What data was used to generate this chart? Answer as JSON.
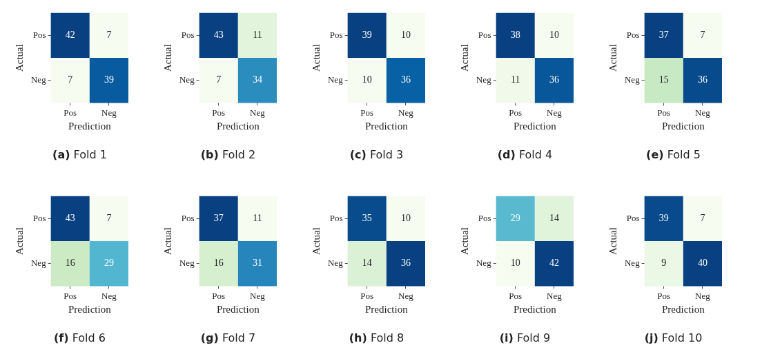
{
  "chart_data": [
    {
      "type": "heatmap",
      "title": "(a) Fold 1",
      "xlabel": "Prediction",
      "ylabel": "Actual",
      "categories": [
        "Pos",
        "Neg"
      ],
      "y_categories": [
        "Pos",
        "Neg"
      ],
      "cells": [
        [
          42,
          7
        ],
        [
          7,
          39
        ]
      ],
      "data_labels": true
    },
    {
      "type": "heatmap",
      "title": "(b) Fold 2",
      "xlabel": "Prediction",
      "ylabel": "Actual",
      "categories": [
        "Pos",
        "Neg"
      ],
      "y_categories": [
        "Pos",
        "Neg"
      ],
      "cells": [
        [
          43,
          11
        ],
        [
          7,
          34
        ]
      ],
      "data_labels": true
    },
    {
      "type": "heatmap",
      "title": "(c) Fold 3",
      "xlabel": "Prediction",
      "ylabel": "Actual",
      "categories": [
        "Pos",
        "Neg"
      ],
      "y_categories": [
        "Pos",
        "Neg"
      ],
      "cells": [
        [
          39,
          10
        ],
        [
          10,
          36
        ]
      ],
      "data_labels": true
    },
    {
      "type": "heatmap",
      "title": "(d) Fold 4",
      "xlabel": "Prediction",
      "ylabel": "Actual",
      "categories": [
        "Pos",
        "Neg"
      ],
      "y_categories": [
        "Pos",
        "Neg"
      ],
      "cells": [
        [
          38,
          10
        ],
        [
          11,
          36
        ]
      ],
      "data_labels": true
    },
    {
      "type": "heatmap",
      "title": "(e) Fold 5",
      "xlabel": "Prediction",
      "ylabel": "Actual",
      "categories": [
        "Pos",
        "Neg"
      ],
      "y_categories": [
        "Pos",
        "Neg"
      ],
      "cells": [
        [
          37,
          7
        ],
        [
          15,
          36
        ]
      ],
      "data_labels": true
    },
    {
      "type": "heatmap",
      "title": "(f) Fold 6",
      "xlabel": "Prediction",
      "ylabel": "Actual",
      "categories": [
        "Pos",
        "Neg"
      ],
      "y_categories": [
        "Pos",
        "Neg"
      ],
      "cells": [
        [
          43,
          7
        ],
        [
          16,
          29
        ]
      ],
      "data_labels": true
    },
    {
      "type": "heatmap",
      "title": "(g) Fold 7",
      "xlabel": "Prediction",
      "ylabel": "Actual",
      "categories": [
        "Pos",
        "Neg"
      ],
      "y_categories": [
        "Pos",
        "Neg"
      ],
      "cells": [
        [
          37,
          11
        ],
        [
          16,
          31
        ]
      ],
      "data_labels": true
    },
    {
      "type": "heatmap",
      "title": "(h) Fold 8",
      "xlabel": "Prediction",
      "ylabel": "Actual",
      "categories": [
        "Pos",
        "Neg"
      ],
      "y_categories": [
        "Pos",
        "Neg"
      ],
      "cells": [
        [
          35,
          10
        ],
        [
          14,
          36
        ]
      ],
      "data_labels": true
    },
    {
      "type": "heatmap",
      "title": "(i) Fold 9",
      "xlabel": "Prediction",
      "ylabel": "Actual",
      "categories": [
        "Pos",
        "Neg"
      ],
      "y_categories": [
        "Pos",
        "Neg"
      ],
      "cells": [
        [
          29,
          14
        ],
        [
          10,
          42
        ]
      ],
      "data_labels": true
    },
    {
      "type": "heatmap",
      "title": "(j) Fold 10",
      "xlabel": "Prediction",
      "ylabel": "Actual",
      "categories": [
        "Pos",
        "Neg"
      ],
      "y_categories": [
        "Pos",
        "Neg"
      ],
      "cells": [
        [
          39,
          7
        ],
        [
          9,
          40
        ]
      ],
      "data_labels": true
    }
  ]
}
